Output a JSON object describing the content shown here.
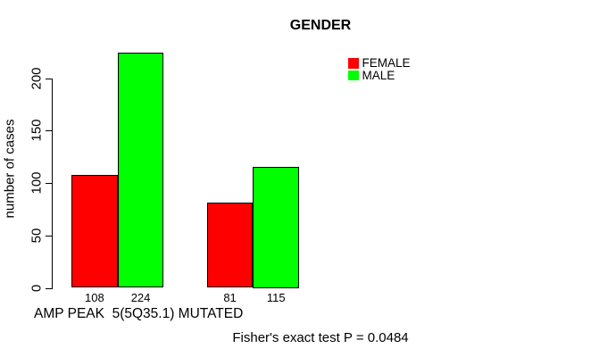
{
  "title": "GENDER",
  "footnote": "Fisher's exact test P = 0.0484",
  "legend": {
    "items": [
      {
        "label": "FEMALE",
        "color": "#ff0000"
      },
      {
        "label": "MALE",
        "color": "#00ff00"
      }
    ]
  },
  "chart_data": {
    "type": "bar",
    "title": "GENDER",
    "ylabel": "number of cases",
    "xlabel": "AMP PEAK  5(5Q35.1) MUTATED",
    "annotation": "Fisher's exact test P = 0.0484",
    "categories": [
      "",
      ""
    ],
    "series": [
      {
        "name": "FEMALE",
        "color": "#ff0000",
        "values": [
          108,
          81
        ]
      },
      {
        "name": "MALE",
        "color": "#00ff00",
        "values": [
          224,
          115
        ]
      }
    ],
    "bar_value_labels": [
      "108",
      "224",
      "81",
      "115"
    ],
    "yticks": [
      0,
      50,
      100,
      150,
      200
    ],
    "ylim": [
      0,
      224
    ],
    "grid": false,
    "legend_position": "inside-top-right"
  }
}
